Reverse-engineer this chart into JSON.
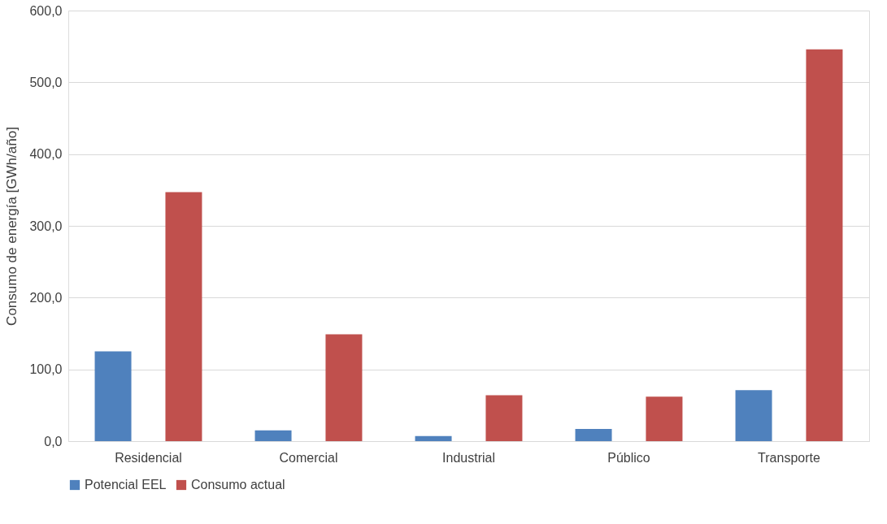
{
  "chart_data": {
    "type": "bar",
    "ylabel": "Consumo de energía [GWh/año]",
    "categories": [
      "Residencial",
      "Comercial",
      "Industrial",
      "Público",
      "Transporte"
    ],
    "series": [
      {
        "name": "Potencial EEL",
        "color": "#4f81bd",
        "values": [
          125,
          15,
          7,
          17,
          71
        ]
      },
      {
        "name": "Consumo actual",
        "color": "#c0504d",
        "values": [
          347,
          149,
          64,
          62,
          546
        ]
      }
    ],
    "ylim": [
      0,
      600
    ],
    "yticks": [
      {
        "value": 0,
        "label": "0,0"
      },
      {
        "value": 100,
        "label": "100,0"
      },
      {
        "value": 200,
        "label": "200,0"
      },
      {
        "value": 300,
        "label": "300,0"
      },
      {
        "value": 400,
        "label": "400,0"
      },
      {
        "value": 500,
        "label": "500,0"
      },
      {
        "value": 600,
        "label": "600,0"
      }
    ],
    "grid": "y",
    "legend": "bottom"
  }
}
